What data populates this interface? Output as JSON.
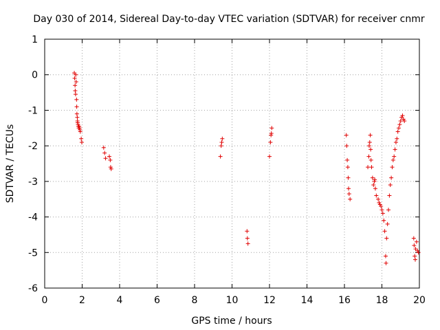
{
  "chart_data": {
    "type": "scatter",
    "title": "Day 030 of 2014, Sidereal Day-to-day VTEC variation (SDTVAR) for receiver cnmr",
    "xlabel": "GPS time / hours",
    "ylabel": "SDTVAR / TECUs",
    "xlim": [
      0,
      20
    ],
    "ylim": [
      -6,
      1
    ],
    "xticks": [
      0,
      2,
      4,
      6,
      8,
      10,
      12,
      14,
      16,
      18,
      20
    ],
    "yticks": [
      -6,
      -5,
      -4,
      -3,
      -2,
      -1,
      0,
      1
    ],
    "xtick_labels": [
      "0",
      "2",
      "4",
      "6",
      "8",
      "10",
      "12",
      "14",
      "16",
      "18",
      "20"
    ],
    "ytick_labels": [
      "-6",
      "-5",
      "-4",
      "-3",
      "-2",
      "-1",
      "0",
      "1"
    ],
    "grid": true,
    "marker": "+",
    "color": "#e00000",
    "series": [
      {
        "name": "SDTVAR",
        "x": [
          1.58,
          1.6,
          1.62,
          1.63,
          1.65,
          1.66,
          1.68,
          1.7,
          1.71,
          1.72,
          1.74,
          1.75,
          1.76,
          1.78,
          1.8,
          1.82,
          1.84,
          1.86,
          1.88,
          1.9,
          1.95,
          1.98,
          3.15,
          3.2,
          3.25,
          3.45,
          3.5,
          3.52,
          3.55,
          9.38,
          9.42,
          9.45,
          9.48,
          10.8,
          10.82,
          10.85,
          12.0,
          12.05,
          12.08,
          12.1,
          12.12,
          16.1,
          16.12,
          16.15,
          16.18,
          16.2,
          16.22,
          16.25,
          16.3,
          17.25,
          17.3,
          17.32,
          17.35,
          17.38,
          17.4,
          17.42,
          17.45,
          17.5,
          17.55,
          17.6,
          17.62,
          17.65,
          17.7,
          17.8,
          17.85,
          17.9,
          17.95,
          18.0,
          18.05,
          18.1,
          18.15,
          18.2,
          18.22,
          18.25,
          18.3,
          18.35,
          18.4,
          18.45,
          18.5,
          18.55,
          18.6,
          18.65,
          18.7,
          18.75,
          18.8,
          18.85,
          18.9,
          18.95,
          19.0,
          19.05,
          19.1,
          19.15,
          19.2,
          19.7,
          19.72,
          19.75,
          19.78,
          19.8,
          19.85,
          19.9,
          19.95
        ],
        "y": [
          0.05,
          -0.1,
          -0.3,
          -0.45,
          -0.55,
          0.0,
          -0.2,
          -0.7,
          -0.9,
          -1.1,
          -1.2,
          -1.3,
          -1.35,
          -1.4,
          -1.45,
          -1.5,
          -1.45,
          -1.5,
          -1.55,
          -1.6,
          -1.8,
          -1.9,
          -2.05,
          -2.2,
          -2.35,
          -2.3,
          -2.4,
          -2.6,
          -2.65,
          -2.3,
          -2.0,
          -1.9,
          -1.8,
          -4.4,
          -4.6,
          -4.75,
          -2.3,
          -1.9,
          -1.7,
          -1.65,
          -1.5,
          -1.7,
          -2.0,
          -2.4,
          -2.6,
          -2.9,
          -3.2,
          -3.35,
          -3.5,
          -2.6,
          -2.3,
          -2.0,
          -1.9,
          -1.7,
          -2.1,
          -2.4,
          -2.6,
          -2.9,
          -3.1,
          -3.0,
          -2.95,
          -3.2,
          -3.4,
          -3.5,
          -3.6,
          -3.65,
          -3.7,
          -3.8,
          -3.9,
          -4.1,
          -4.4,
          -5.1,
          -5.3,
          -4.6,
          -4.2,
          -3.8,
          -3.4,
          -3.1,
          -2.9,
          -2.6,
          -2.4,
          -2.3,
          -2.1,
          -1.9,
          -1.8,
          -1.6,
          -1.5,
          -1.4,
          -1.3,
          -1.2,
          -1.15,
          -1.25,
          -1.3,
          -4.6,
          -4.8,
          -5.1,
          -5.2,
          -4.9,
          -4.7,
          -4.95,
          -5.0
        ]
      }
    ]
  }
}
